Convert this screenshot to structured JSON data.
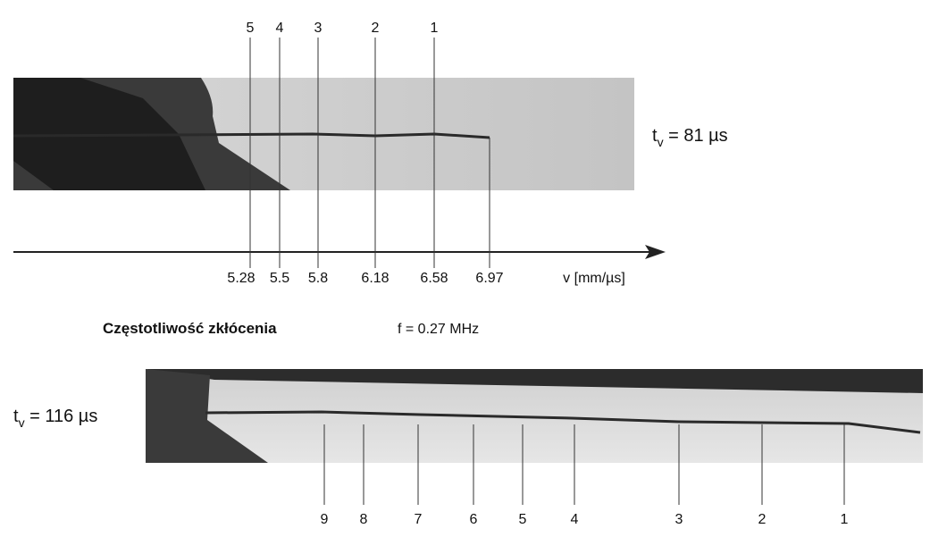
{
  "top_panel": {
    "markers": [
      "5",
      "4",
      "3",
      "2",
      "1"
    ],
    "time_symbol": "t",
    "time_subscript": "v",
    "time_value": " = 81 µs"
  },
  "velocity_axis": {
    "ticks": [
      "5.28",
      "5.5",
      "5.8",
      "6.18",
      "6.58",
      "6.97"
    ],
    "label": "v [mm/µs]"
  },
  "frequency": {
    "label": "Częstotliwość zkłócenia",
    "value": "f = 0.27 MHz"
  },
  "bottom_panel": {
    "markers": [
      "9",
      "8",
      "7",
      "6",
      "5",
      "4",
      "3",
      "2",
      "1"
    ],
    "time_symbol": "t",
    "time_subscript": "v",
    "time_value": " = 116 µs"
  }
}
